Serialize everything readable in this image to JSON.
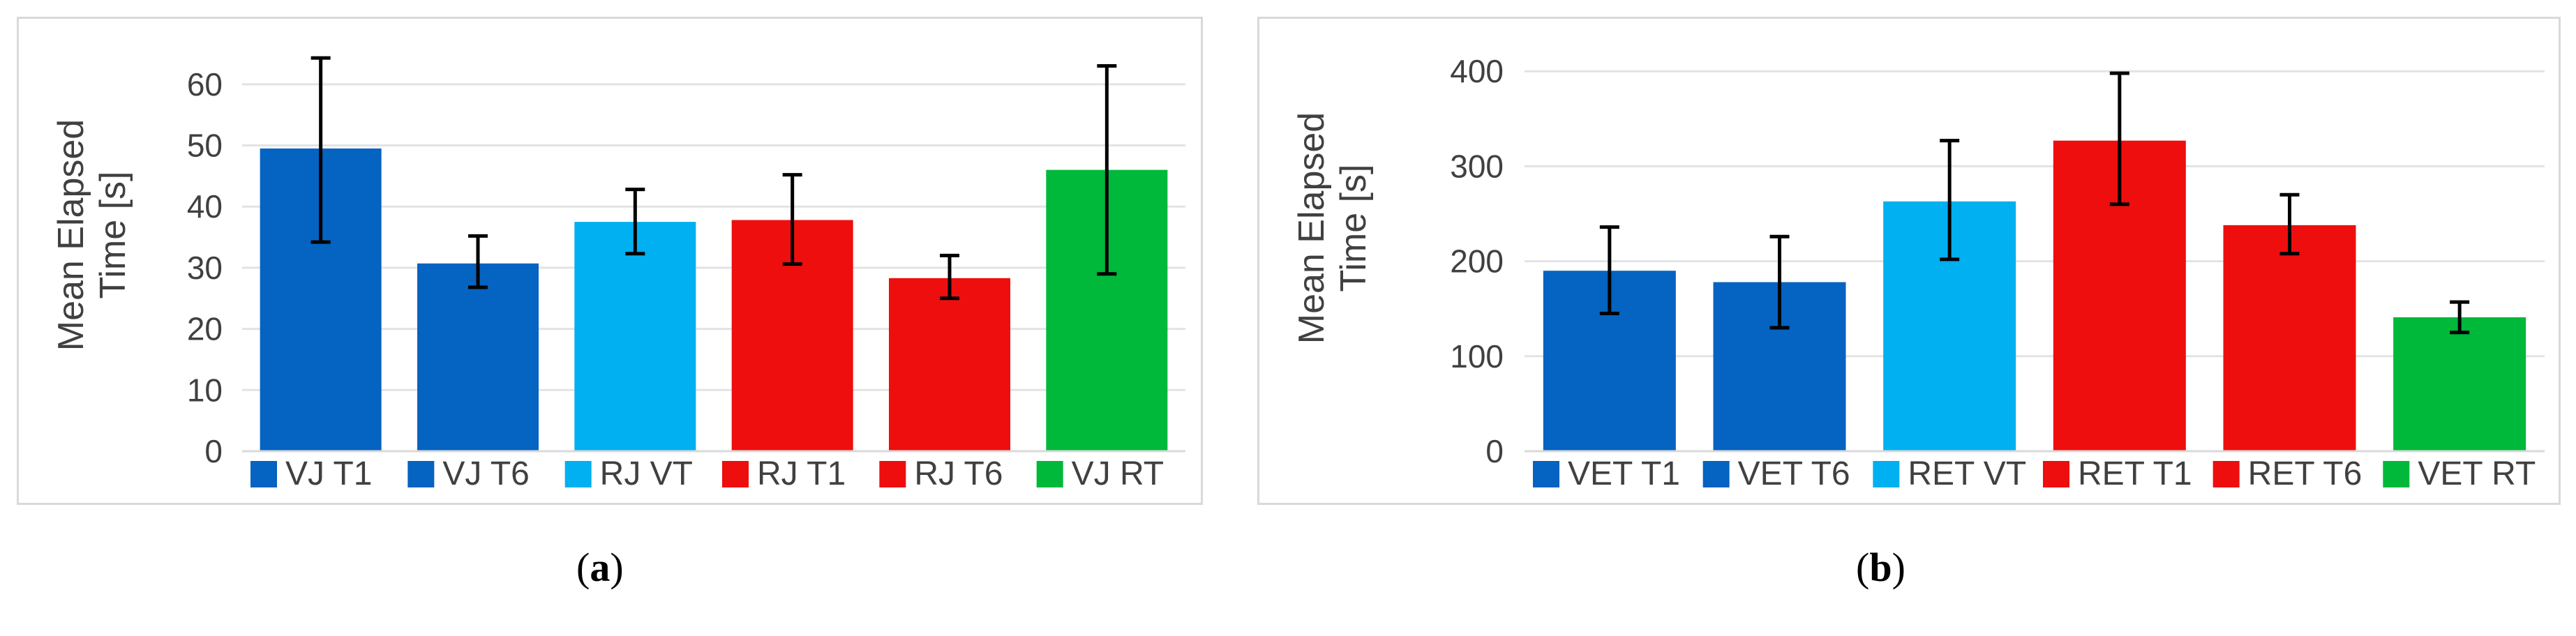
{
  "chart_data": [
    {
      "type": "bar",
      "panel_label": "a",
      "ylabel": "Mean Elapsed Time [s]",
      "ylabel_lines": [
        "Mean Elapsed",
        "Time [s]"
      ],
      "ylim": [
        0,
        65
      ],
      "yticks": [
        0,
        10,
        20,
        30,
        40,
        50,
        60
      ],
      "grid": true,
      "legend": "bottom",
      "categories": [
        "VJ T1",
        "VJ T6",
        "RJ VT",
        "RJ T1",
        "RJ T6",
        "VJ RT"
      ],
      "values": [
        49.5,
        30.7,
        37.5,
        37.8,
        28.3,
        46.0
      ],
      "error_low": [
        34.2,
        26.8,
        32.3,
        30.6,
        25.0,
        29.0
      ],
      "error_high": [
        64.3,
        35.2,
        42.8,
        45.2,
        32.0,
        63.0
      ],
      "colors": [
        "#0563c1",
        "#0563c1",
        "#00b0f0",
        "#ee0e0e",
        "#ee0e0e",
        "#00b83a"
      ]
    },
    {
      "type": "bar",
      "panel_label": "b",
      "ylabel": "Mean Elapsed Time [s]",
      "ylabel_lines": [
        "Mean Elapsed",
        "Time [s]"
      ],
      "ylim": [
        0,
        420
      ],
      "yticks": [
        0,
        100,
        200,
        300,
        400
      ],
      "grid": true,
      "legend": "bottom",
      "categories": [
        "VET T1",
        "VET T6",
        "RET VT",
        "RET T1",
        "RET T6",
        "VET RT"
      ],
      "values": [
        190,
        178,
        263,
        327,
        238,
        141
      ],
      "error_low": [
        145,
        130,
        202,
        260,
        208,
        125
      ],
      "error_high": [
        236,
        226,
        327,
        398,
        270,
        157
      ],
      "colors": [
        "#0563c1",
        "#0563c1",
        "#00b0f0",
        "#ee0e0e",
        "#ee0e0e",
        "#00b83a"
      ]
    }
  ],
  "captions": [
    "a",
    "b"
  ]
}
